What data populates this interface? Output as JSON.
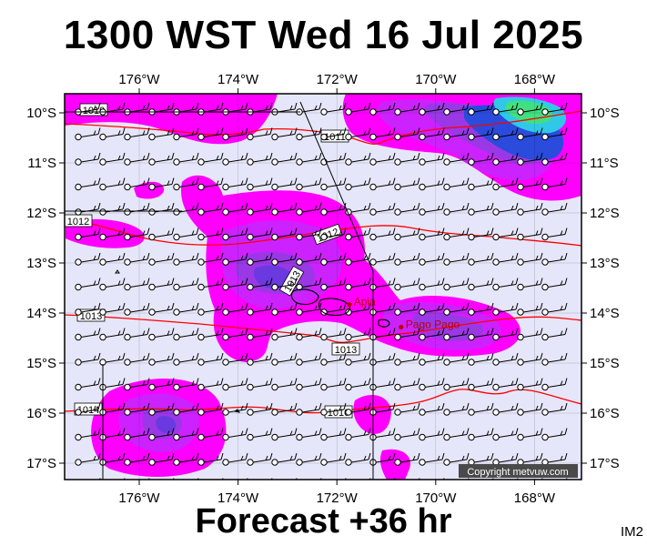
{
  "title": "1300 WST Wed 16 Jul 2025",
  "footer": "Forecast +36 hr",
  "code": "IM2",
  "copyright": "Copyright metvuw.com",
  "lon_ticks": [
    "176°W",
    "174°W",
    "172°W",
    "170°W",
    "168°W"
  ],
  "lat_ticks": [
    "10°S",
    "11°S",
    "12°S",
    "13°S",
    "14°S",
    "15°S",
    "16°S",
    "17°S"
  ],
  "cities": [
    {
      "name": "Apia",
      "lon": -171.75,
      "lat": -13.83
    },
    {
      "name": "Pago Pago",
      "lon": -170.7,
      "lat": -14.28
    }
  ],
  "isobar_labels": [
    "1010",
    "1011",
    "1012",
    "1012",
    "1013",
    "1013",
    "1013",
    "1014",
    "1010"
  ],
  "colors": {
    "background": "#e6e6fa",
    "rain_light": "#ff00ff",
    "rain_medium": "#cc22ff",
    "rain_heavy": "#9a38e6",
    "rain_heavier": "#6a3ae0",
    "rain_blue": "#2a4bdc",
    "rain_cyan": "#30c8e8",
    "rain_green": "#40e080",
    "isobar": "#ff0000",
    "grid": "#000000",
    "city": "#c00000"
  }
}
